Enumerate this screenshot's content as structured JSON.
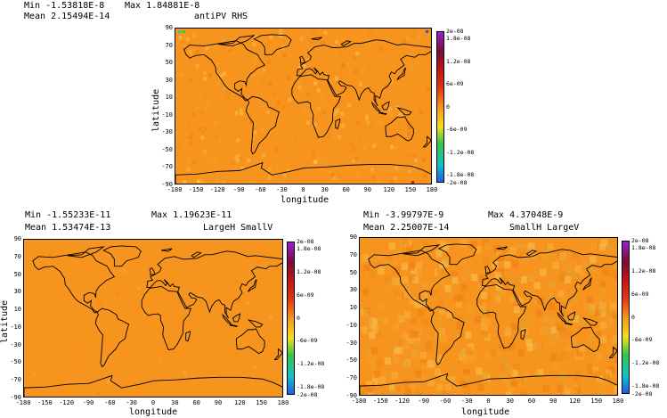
{
  "panels": [
    {
      "min_label": "Min",
      "min_value": "-1.53818E-8",
      "max_label": "Max",
      "max_value": "1.84881E-8",
      "mean_label": "Mean",
      "mean_value": "2.15494E-14",
      "title": "antiPV RHS",
      "xlabel": "longitude",
      "ylabel": "latitude"
    },
    {
      "min_label": "Min",
      "min_value": "-1.55233E-11",
      "max_label": "Max",
      "max_value": "1.19623E-11",
      "mean_label": "Mean",
      "mean_value": "1.53474E-13",
      "title": "LargeH SmallV",
      "xlabel": "longitude",
      "ylabel": "latitude"
    },
    {
      "min_label": "Min",
      "min_value": "-3.99797E-9",
      "max_label": "Max",
      "max_value": "4.37048E-9",
      "mean_label": "Mean",
      "mean_value": "2.25007E-14",
      "title": "SmallH LargeV",
      "xlabel": "longitude",
      "ylabel": ""
    }
  ],
  "lon_ticks": [
    "-180",
    "-150",
    "-120",
    "-90",
    "-60",
    "-30",
    "0",
    "30",
    "60",
    "90",
    "120",
    "150",
    "180"
  ],
  "lat_ticks": [
    "90",
    "70",
    "50",
    "30",
    "10",
    "-10",
    "-30",
    "-50",
    "-70",
    "-90"
  ],
  "colorbar_ticks": [
    "2e-08",
    "1.8e-08",
    "1.2e-08",
    "6e-09",
    "0",
    "-6e-09",
    "-1.2e-08",
    "-1.8e-08",
    "-2e-08"
  ],
  "colors": {
    "field_background": "#f7941d",
    "coast": "#000000",
    "colorbar_stops": [
      "#9b1fd6",
      "#7a0a3a",
      "#c01515",
      "#e03a10",
      "#f7941d",
      "#f3e01a",
      "#2fc44a",
      "#15c4c4",
      "#1a5ff0"
    ]
  }
}
